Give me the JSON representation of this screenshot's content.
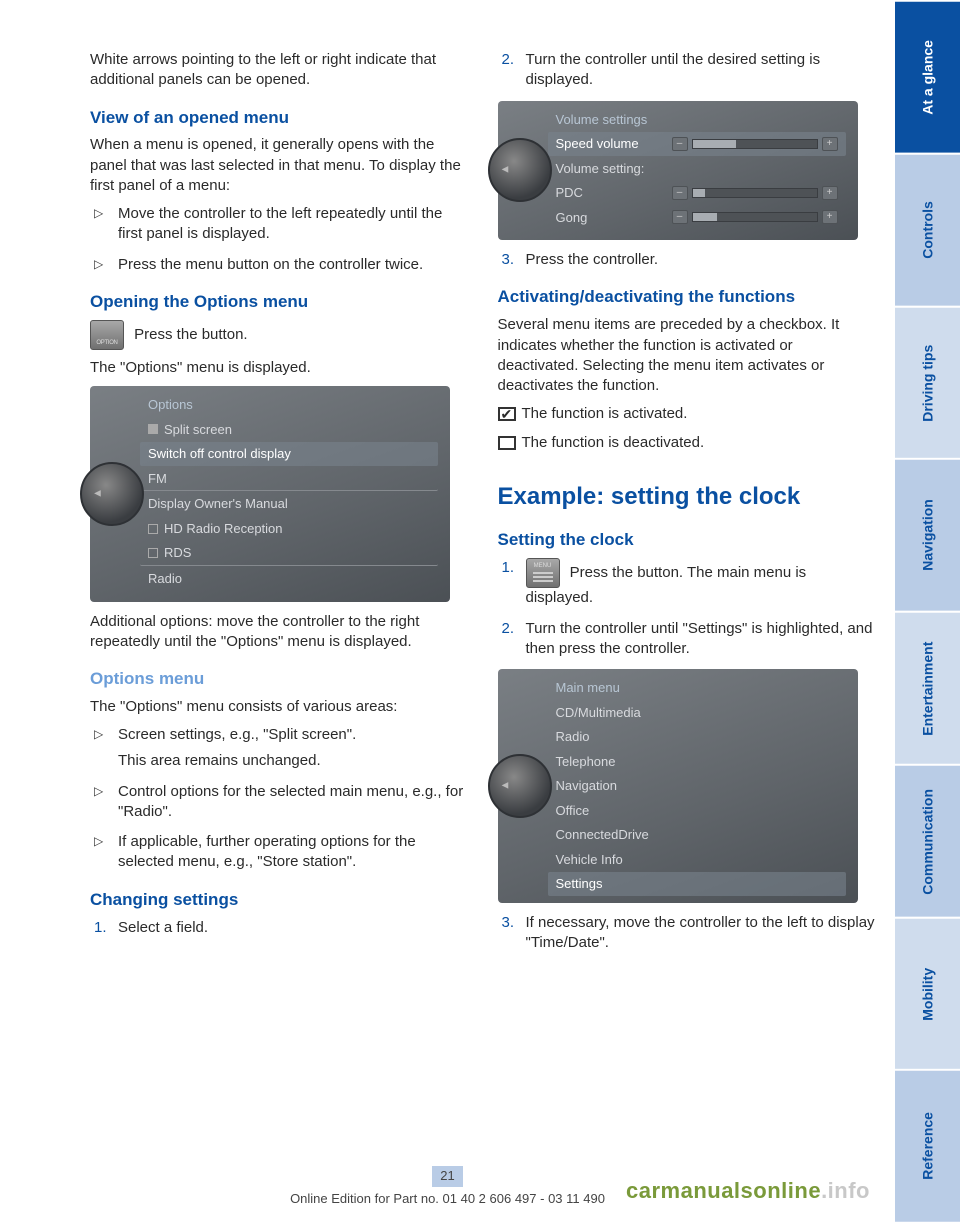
{
  "tabs": [
    {
      "label": "At a glance",
      "bg": "#0a50a1",
      "fg": "#ffffff"
    },
    {
      "label": "Controls",
      "bg": "#b9cce6",
      "fg": "#0a50a1"
    },
    {
      "label": "Driving tips",
      "bg": "#cfdced",
      "fg": "#0a50a1"
    },
    {
      "label": "Navigation",
      "bg": "#b9cce6",
      "fg": "#0a50a1"
    },
    {
      "label": "Entertainment",
      "bg": "#cfdced",
      "fg": "#0a50a1"
    },
    {
      "label": "Communication",
      "bg": "#b9cce6",
      "fg": "#0a50a1"
    },
    {
      "label": "Mobility",
      "bg": "#cfdced",
      "fg": "#0a50a1"
    },
    {
      "label": "Reference",
      "bg": "#b9cce6",
      "fg": "#0a50a1"
    }
  ],
  "left": {
    "intro": "White arrows pointing to the left or right indicate that additional panels can be opened.",
    "view_h": "View of an opened menu",
    "view_p": "When a menu is opened, it generally opens with the panel that was last selected in that menu. To display the first panel of a menu:",
    "view_li1": "Move the controller to the left repeatedly until the first panel is displayed.",
    "view_li2": "Press the menu button on the controller twice.",
    "open_h": "Opening the Options menu",
    "open_btn": "Press the button.",
    "open_p": "The \"Options\" menu is displayed.",
    "shot1": {
      "title": "Options",
      "rows": [
        {
          "label": "Split screen",
          "icon": "tv"
        },
        {
          "label": "Switch off control display",
          "hl": true
        },
        {
          "label": "FM",
          "sep": true
        },
        {
          "label": "Display Owner's Manual"
        },
        {
          "label": "HD Radio Reception",
          "box": true
        },
        {
          "label": "RDS",
          "box": true,
          "sep": true
        },
        {
          "label": "Radio"
        }
      ]
    },
    "open_p2": "Additional options: move the controller to the right repeatedly until the \"Options\" menu is dis­played.",
    "optmenu_h": "Options menu",
    "optmenu_p": "The \"Options\" menu consists of various areas:",
    "opt_li1a": "Screen settings, e.g., \"Split screen\".",
    "opt_li1b": "This area remains unchanged.",
    "opt_li2": "Control options for the selected main menu, e.g., for \"Radio\".",
    "opt_li3": "If applicable, further operating options for the selected menu, e.g., \"Store station\".",
    "chg_h": "Changing settings",
    "chg_li1": "Select a field."
  },
  "right": {
    "chg_li2": "Turn the controller until the desired setting is displayed.",
    "shot2": {
      "title": "Volume settings",
      "rows": [
        {
          "label": "Speed volume",
          "slider": 35,
          "hl": true
        },
        {
          "label": "Volume setting:",
          "plain": true
        },
        {
          "label": "PDC",
          "slider": 10
        },
        {
          "label": "Gong",
          "slider": 20
        }
      ]
    },
    "chg_li3": "Press the controller.",
    "act_h": "Activating/deactivating the functions",
    "act_p": "Several menu items are preceded by a check­box. It indicates whether the function is acti­vated or deactivated. Selecting the menu item activates or deactivates the function.",
    "act_on": "The function is activated.",
    "act_off": "The function is deactivated.",
    "ex_h": "Example: setting the clock",
    "set_h": "Setting the clock",
    "set_li1": "Press the button. The main menu is displayed.",
    "set_li2": "Turn the controller until \"Settings\" is high­lighted, and then press the controller.",
    "shot3": {
      "title": "Main menu",
      "rows": [
        {
          "label": "CD/Multimedia"
        },
        {
          "label": "Radio"
        },
        {
          "label": "Telephone"
        },
        {
          "label": "Navigation"
        },
        {
          "label": "Office"
        },
        {
          "label": "ConnectedDrive"
        },
        {
          "label": "Vehicle Info"
        },
        {
          "label": "Settings",
          "hl": true
        }
      ]
    },
    "set_li3": "If necessary, move the controller to the left to display \"Time/Date\"."
  },
  "footer": {
    "page": "21",
    "line": "Online Edition for Part no. 01 40 2 606 497 - 03 11 490"
  },
  "watermark": {
    "a": "carmanualsonline",
    "b": ".info"
  }
}
